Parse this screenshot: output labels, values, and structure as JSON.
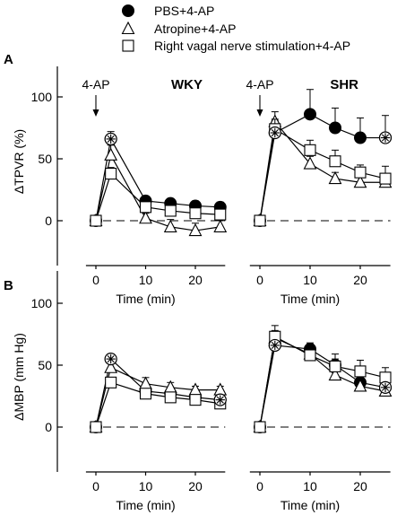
{
  "legend": [
    {
      "key": "pbs",
      "label": "PBS+4-AP",
      "marker": "filled-circle"
    },
    {
      "key": "atropine",
      "label": "Atropine+4-AP",
      "marker": "open-triangle"
    },
    {
      "key": "vagal",
      "label": "Right vagal nerve stimulation+4-AP",
      "marker": "open-square"
    }
  ],
  "chart_data": [
    {
      "type": "line",
      "panel_label": "A",
      "ylabel": "ΔTPVR (%)",
      "ylim": [
        -20,
        125
      ],
      "yticks": [
        0,
        50,
        100
      ],
      "xlabel": "Time (min)",
      "xticks": [
        0,
        10,
        20
      ],
      "xlim": [
        -2,
        26
      ],
      "subplots": [
        {
          "title": "WKY",
          "annotation": "4-AP",
          "series": [
            {
              "key": "pbs",
              "x": [
                0,
                3,
                10,
                15,
                20,
                25
              ],
              "y": [
                0,
                66,
                16,
                14,
                12,
                11
              ],
              "err": [
                0,
                6,
                3,
                3,
                4,
                4
              ]
            },
            {
              "key": "atropine",
              "x": [
                0,
                3,
                10,
                15,
                20,
                25
              ],
              "y": [
                0,
                53,
                2,
                -5,
                -8,
                -5
              ],
              "err": [
                0,
                8,
                4,
                6,
                6,
                5
              ]
            },
            {
              "key": "vagal",
              "x": [
                0,
                3,
                10,
                15,
                20,
                25
              ],
              "y": [
                0,
                38,
                11,
                8,
                6,
                5
              ],
              "err": [
                0,
                5,
                3,
                3,
                3,
                3
              ]
            }
          ],
          "star_points": [
            3
          ]
        },
        {
          "title": "SHR",
          "annotation": "4-AP",
          "series": [
            {
              "key": "pbs",
              "x": [
                0,
                3,
                10,
                15,
                20,
                25
              ],
              "y": [
                0,
                71,
                86,
                75,
                67,
                67
              ],
              "err": [
                0,
                10,
                20,
                16,
                16,
                18
              ]
            },
            {
              "key": "atropine",
              "x": [
                0,
                3,
                10,
                15,
                20,
                25
              ],
              "y": [
                0,
                80,
                46,
                34,
                31,
                31
              ],
              "err": [
                0,
                8,
                6,
                5,
                4,
                4
              ]
            },
            {
              "key": "vagal",
              "x": [
                0,
                3,
                10,
                15,
                20,
                25
              ],
              "y": [
                0,
                74,
                57,
                48,
                39,
                34
              ],
              "err": [
                0,
                8,
                8,
                9,
                6,
                10
              ]
            }
          ],
          "star_points": [
            3,
            25
          ]
        }
      ]
    },
    {
      "type": "line",
      "panel_label": "B",
      "ylabel": "ΔMBP (mm Hg)",
      "ylim": [
        -20,
        125
      ],
      "yticks": [
        0,
        50,
        100
      ],
      "xlabel": "Time (min)",
      "xticks": [
        0,
        10,
        20
      ],
      "xlim": [
        -2,
        26
      ],
      "subplots": [
        {
          "series": [
            {
              "key": "pbs",
              "x": [
                0,
                3,
                10,
                15,
                20,
                25
              ],
              "y": [
                0,
                55,
                29,
                27,
                24,
                22
              ],
              "err": [
                0,
                4,
                4,
                4,
                3,
                3
              ]
            },
            {
              "key": "atropine",
              "x": [
                0,
                3,
                10,
                15,
                20,
                25
              ],
              "y": [
                0,
                48,
                35,
                32,
                30,
                30
              ],
              "err": [
                0,
                5,
                5,
                4,
                3,
                3
              ]
            },
            {
              "key": "vagal",
              "x": [
                0,
                3,
                10,
                15,
                20,
                25
              ],
              "y": [
                0,
                36,
                27,
                24,
                22,
                19
              ],
              "err": [
                0,
                4,
                4,
                3,
                3,
                3
              ]
            }
          ],
          "star_points": [
            3,
            25
          ]
        },
        {
          "series": [
            {
              "key": "pbs",
              "x": [
                0,
                3,
                10,
                15,
                20,
                25
              ],
              "y": [
                0,
                66,
                63,
                50,
                36,
                32
              ],
              "err": [
                0,
                6,
                5,
                5,
                4,
                3
              ]
            },
            {
              "key": "atropine",
              "x": [
                0,
                3,
                10,
                15,
                20,
                25
              ],
              "y": [
                0,
                72,
                59,
                42,
                33,
                29
              ],
              "err": [
                0,
                6,
                5,
                4,
                3,
                3
              ]
            },
            {
              "key": "vagal",
              "x": [
                0,
                3,
                10,
                15,
                20,
                25
              ],
              "y": [
                0,
                73,
                58,
                49,
                45,
                40
              ],
              "err": [
                0,
                9,
                5,
                10,
                9,
                8
              ]
            }
          ],
          "star_points": [
            3,
            25
          ]
        }
      ]
    }
  ]
}
